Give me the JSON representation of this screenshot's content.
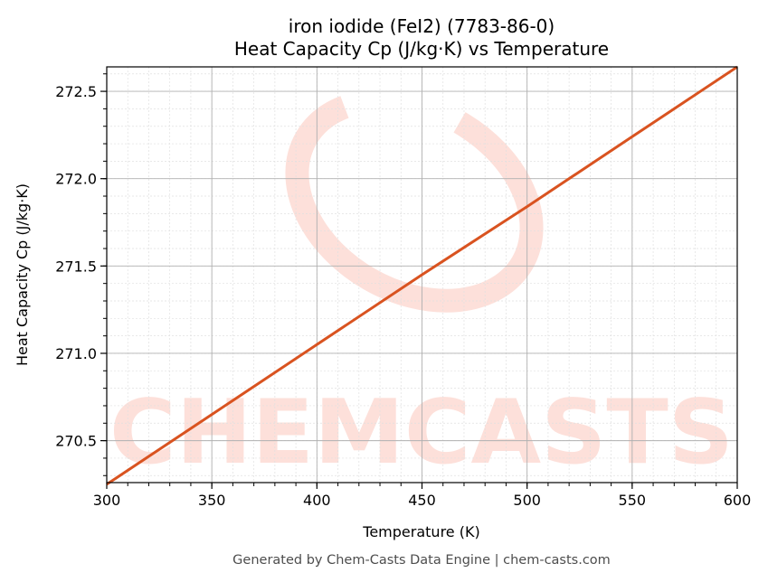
{
  "chart_data": {
    "type": "line",
    "title": "iron iodide (FeI2) (7783-86-0)",
    "subtitle": "Heat Capacity Cp (J/kg·K) vs Temperature",
    "xlabel": "Temperature (K)",
    "ylabel": "Heat Capacity Cp (J/kg·K)",
    "xlim": [
      300,
      600
    ],
    "ylim": [
      270.26,
      272.64
    ],
    "x_ticks": [
      300,
      350,
      400,
      450,
      500,
      550,
      600
    ],
    "x_tick_labels": [
      "300",
      "350",
      "400",
      "450",
      "500",
      "550",
      "600"
    ],
    "y_ticks": [
      270.5,
      271.0,
      271.5,
      272.0,
      272.5
    ],
    "y_tick_labels": [
      "270.5",
      "271.0",
      "271.5",
      "272.0",
      "272.5"
    ],
    "grid": true,
    "minor_grid": true,
    "legend": null,
    "series": [
      {
        "name": "Heat Capacity Cp",
        "color": "#d95320",
        "x": [
          300,
          350,
          400,
          450,
          500,
          550,
          600
        ],
        "values": [
          270.25,
          270.65,
          271.05,
          271.45,
          271.84,
          272.24,
          272.64
        ]
      }
    ],
    "watermark": "CHEMCASTS",
    "footer": "Generated by Chem-Casts Data Engine | chem-casts.com"
  },
  "colors": {
    "line": "#d95320",
    "watermark": "#fde0da",
    "major_grid": "#b0b0b0",
    "minor_grid": "#e0e0e0",
    "footer_text": "#4d4d4d"
  }
}
